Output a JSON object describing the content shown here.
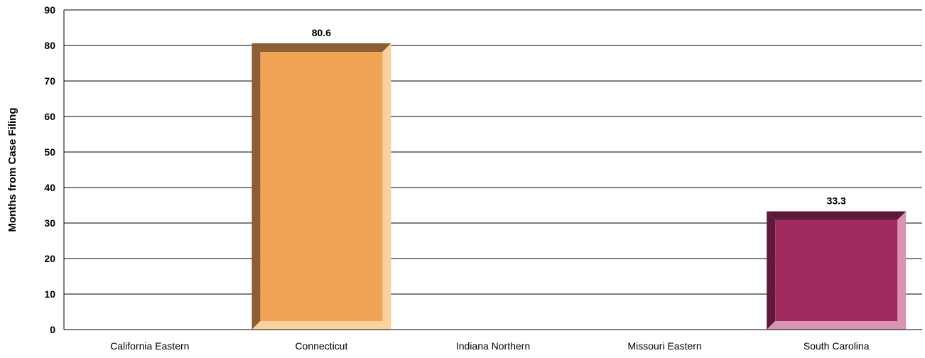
{
  "chart_data": {
    "type": "bar",
    "title": "",
    "xlabel": "",
    "ylabel": "Months from Case Filing",
    "categories": [
      "California Eastern",
      "Connecticut",
      "Indiana Northern",
      "Missouri Eastern",
      "South Carolina"
    ],
    "values": [
      null,
      80.6,
      null,
      null,
      33.3
    ],
    "value_labels": [
      "",
      "80.6",
      "",
      "",
      "33.3"
    ],
    "ylim": [
      0,
      90
    ],
    "yticks": [
      0,
      10,
      20,
      30,
      40,
      50,
      60,
      70,
      80,
      90
    ],
    "ytick_labels": [
      "0",
      "10",
      "20",
      "30",
      "40",
      "50",
      "60",
      "70",
      "80",
      "90"
    ],
    "grid": true,
    "legend": "none",
    "colors": {
      "Connecticut": {
        "face": "#f0a354",
        "left": "#8b5e34",
        "top": "#8b5e34",
        "right": "#fbd19e",
        "bottom": "#fbd19e"
      },
      "South Carolina": {
        "face": "#a12b5f",
        "left": "#5c1a38",
        "top": "#5c1a38",
        "right": "#d894b3",
        "bottom": "#d894b3"
      }
    }
  }
}
